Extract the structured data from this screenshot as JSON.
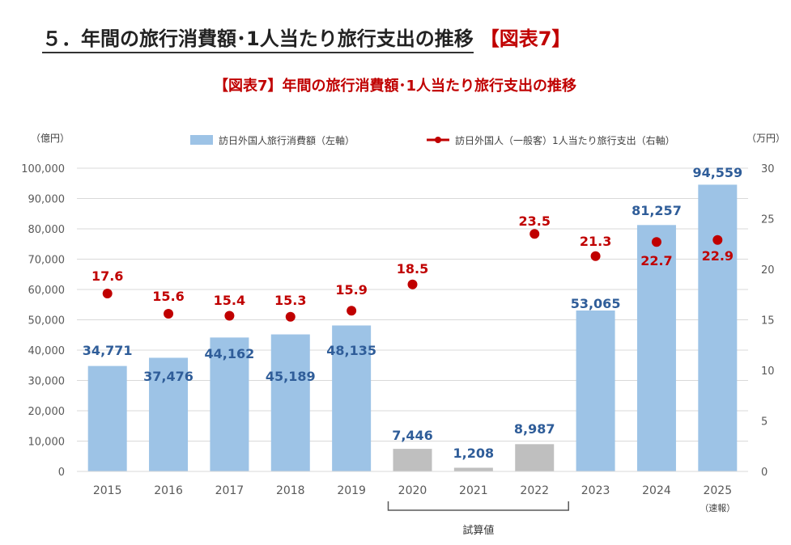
{
  "heading": {
    "text": "５．年間の旅行消費額･1人当たり旅行支出の推移",
    "tag": "【図表7】"
  },
  "chart_data": {
    "type": "bar+line",
    "title": "【図表7】年間の旅行消費額･1人当たり旅行支出の推移",
    "categories": [
      "2015",
      "2016",
      "2017",
      "2018",
      "2019",
      "2020",
      "2021",
      "2022",
      "2023",
      "2024",
      "2025"
    ],
    "category_notes": {
      "2025": "（速報）"
    },
    "bracket": {
      "from": "2020",
      "to": "2022",
      "label": "試算値"
    },
    "ylabel_left": "（億円）",
    "ylabel_right": "（万円）",
    "ylim_left": [
      0,
      100000
    ],
    "yticks_left": [
      "0",
      "10,000",
      "20,000",
      "30,000",
      "40,000",
      "50,000",
      "60,000",
      "70,000",
      "80,000",
      "90,000",
      "100,000"
    ],
    "ylim_right": [
      0,
      30
    ],
    "yticks_right": [
      "0",
      "5",
      "10",
      "15",
      "20",
      "25",
      "30"
    ],
    "grid": true,
    "legend": "top",
    "series": [
      {
        "name": "訪日外国人旅行消費額（左軸）",
        "type": "bar",
        "axis": "left",
        "values": [
          34771,
          37476,
          44162,
          45189,
          48135,
          7446,
          1208,
          8987,
          53065,
          81257,
          94559
        ],
        "labels": [
          "34,771",
          "37,476",
          "44,162",
          "45,189",
          "48,135",
          "7,446",
          "1,208",
          "8,987",
          "53,065",
          "81,257",
          "94,559"
        ],
        "color": "#9dc3e6",
        "estimate_color": "#bfbfbf",
        "label_color": "#2f5d99"
      },
      {
        "name": "訪日外国人（一般客）1人当たり旅行支出（右軸）",
        "type": "line",
        "axis": "right",
        "values": [
          17.6,
          15.6,
          15.4,
          15.3,
          15.9,
          18.5,
          null,
          23.5,
          21.3,
          22.7,
          22.9
        ],
        "color": "#c00000"
      }
    ]
  }
}
